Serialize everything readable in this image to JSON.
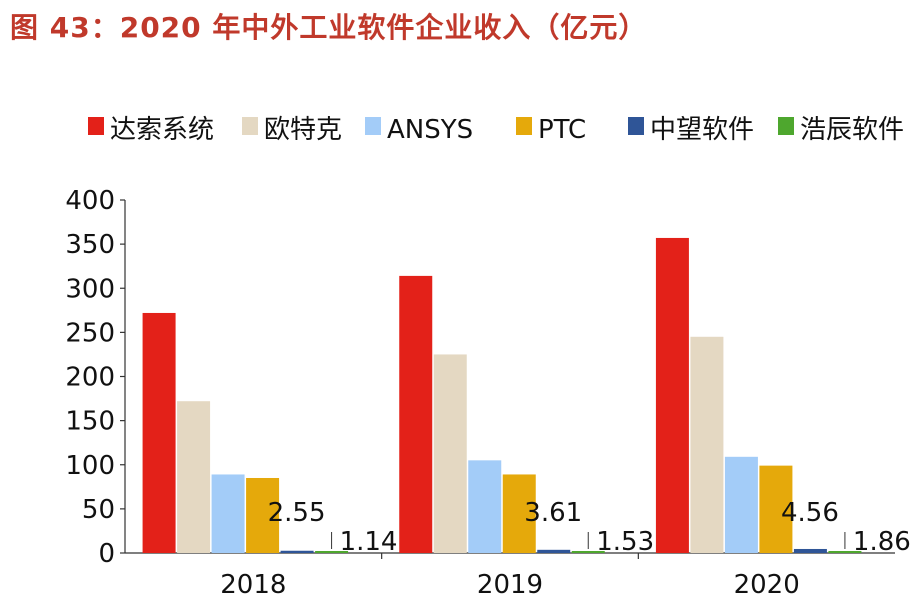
{
  "figure_title": "图 43：2020 年中外工业软件企业收入（亿元）",
  "chart_data": {
    "type": "bar",
    "title": "",
    "xlabel": "",
    "ylabel": "",
    "categories": [
      "2018",
      "2019",
      "2020"
    ],
    "ylim": [
      0,
      400
    ],
    "yticks": [
      0,
      50,
      100,
      150,
      200,
      250,
      300,
      350,
      400
    ],
    "grid": false,
    "legend_position": "top",
    "series": [
      {
        "name": "达索系统",
        "color": "#e32119",
        "values": [
          272,
          314,
          357
        ]
      },
      {
        "name": "欧特克",
        "color": "#e4d8c2",
        "values": [
          172,
          225,
          245
        ]
      },
      {
        "name": "ANSYS",
        "color": "#a3ccf8",
        "values": [
          89,
          105,
          109
        ]
      },
      {
        "name": "PTC",
        "color": "#e5a90b",
        "values": [
          85,
          89,
          99
        ]
      },
      {
        "name": "中望软件",
        "color": "#2f5597",
        "values": [
          2.55,
          3.61,
          4.56
        ]
      },
      {
        "name": "浩辰软件",
        "color": "#4ea72e",
        "values": [
          1.14,
          1.53,
          1.86
        ]
      }
    ],
    "data_labels": [
      {
        "series": "中望软件",
        "values": [
          "2.55",
          "3.61",
          "4.56"
        ]
      },
      {
        "series": "浩辰软件",
        "values": [
          "1.14",
          "1.53",
          "1.86"
        ]
      }
    ]
  }
}
